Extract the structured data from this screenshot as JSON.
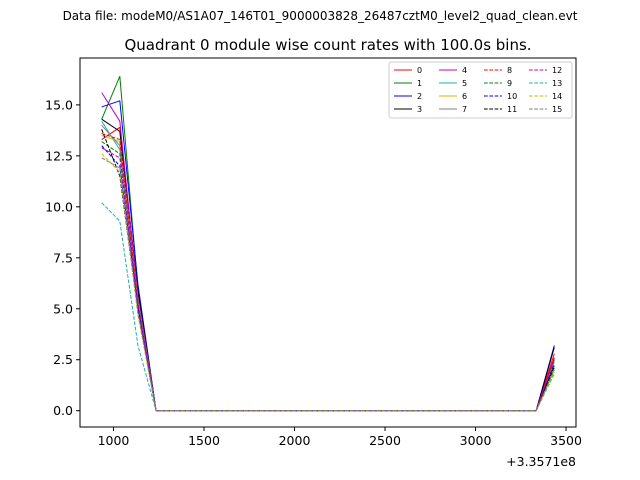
{
  "figure": {
    "supertitle": "Data file: modeM0/AS1A07_146T01_9000003828_26487cztM0_level2_quad_clean.evt",
    "title": "Quadrant 0 module wise count rates with 100.0s bins.",
    "x_offset_label": "+3.3571e8"
  },
  "chart_data": {
    "type": "line",
    "title": "Quadrant 0 module wise count rates with 100.0s bins.",
    "xlabel": "",
    "ylabel": "",
    "x_offset": 335710000,
    "xlim": [
      815,
      3555
    ],
    "ylim": [
      -0.8,
      17.3
    ],
    "xticks": [
      1000,
      1500,
      2000,
      2500,
      3000,
      3500
    ],
    "xtick_labels": [
      "1000",
      "1500",
      "2000",
      "2500",
      "3000",
      "3500"
    ],
    "yticks": [
      0.0,
      2.5,
      5.0,
      7.5,
      10.0,
      12.5,
      15.0
    ],
    "ytick_labels": [
      "0.0",
      "2.5",
      "5.0",
      "7.5",
      "10.0",
      "12.5",
      "15.0"
    ],
    "grid": false,
    "legend_position": "top-right",
    "legend_columns": 4,
    "x": [
      935,
      1035,
      1135,
      1235,
      1335,
      1435,
      1535,
      1635,
      1735,
      1835,
      1935,
      2035,
      2135,
      2235,
      2335,
      2435,
      2535,
      2635,
      2735,
      2835,
      2935,
      3035,
      3135,
      3235,
      3335,
      3435
    ],
    "series": [
      {
        "name": "0",
        "color": "#ff0000",
        "dash": "solid",
        "values": [
          13.3,
          13.9,
          5.7,
          0,
          0,
          0,
          0,
          0,
          0,
          0,
          0,
          0,
          0,
          0,
          0,
          0,
          0,
          0,
          0,
          0,
          0,
          0,
          0,
          0,
          0,
          2.8
        ]
      },
      {
        "name": "1",
        "color": "#008000",
        "dash": "solid",
        "values": [
          14.3,
          16.4,
          6.0,
          0,
          0,
          0,
          0,
          0,
          0,
          0,
          0,
          0,
          0,
          0,
          0,
          0,
          0,
          0,
          0,
          0,
          0,
          0,
          0,
          0,
          0,
          2.5
        ]
      },
      {
        "name": "2",
        "color": "#0000ff",
        "dash": "solid",
        "values": [
          14.9,
          15.2,
          6.2,
          0,
          0,
          0,
          0,
          0,
          0,
          0,
          0,
          0,
          0,
          0,
          0,
          0,
          0,
          0,
          0,
          0,
          0,
          0,
          0,
          0,
          0,
          3.2
        ]
      },
      {
        "name": "3",
        "color": "#000000",
        "dash": "solid",
        "values": [
          14.3,
          13.7,
          5.9,
          0,
          0,
          0,
          0,
          0,
          0,
          0,
          0,
          0,
          0,
          0,
          0,
          0,
          0,
          0,
          0,
          0,
          0,
          0,
          0,
          0,
          0,
          3.1
        ]
      },
      {
        "name": "4",
        "color": "#bf00bf",
        "dash": "solid",
        "values": [
          15.6,
          14.2,
          5.6,
          0,
          0,
          0,
          0,
          0,
          0,
          0,
          0,
          0,
          0,
          0,
          0,
          0,
          0,
          0,
          0,
          0,
          0,
          0,
          0,
          0,
          0,
          2.6
        ]
      },
      {
        "name": "5",
        "color": "#20b2aa",
        "dash": "solid",
        "values": [
          14.2,
          12.8,
          5.2,
          0,
          0,
          0,
          0,
          0,
          0,
          0,
          0,
          0,
          0,
          0,
          0,
          0,
          0,
          0,
          0,
          0,
          0,
          0,
          0,
          0,
          0,
          2.2
        ]
      },
      {
        "name": "6",
        "color": "#bfbf00",
        "dash": "solid",
        "values": [
          13.5,
          13.2,
          5.4,
          0,
          0,
          0,
          0,
          0,
          0,
          0,
          0,
          0,
          0,
          0,
          0,
          0,
          0,
          0,
          0,
          0,
          0,
          0,
          0,
          0,
          0,
          2.0
        ]
      },
      {
        "name": "7",
        "color": "#808080",
        "dash": "solid",
        "values": [
          14.0,
          13.0,
          5.5,
          0,
          0,
          0,
          0,
          0,
          0,
          0,
          0,
          0,
          0,
          0,
          0,
          0,
          0,
          0,
          0,
          0,
          0,
          0,
          0,
          0,
          0,
          2.4
        ]
      },
      {
        "name": "8",
        "color": "#ff0000",
        "dash": "dashed",
        "values": [
          13.6,
          13.3,
          5.3,
          0,
          0,
          0,
          0,
          0,
          0,
          0,
          0,
          0,
          0,
          0,
          0,
          0,
          0,
          0,
          0,
          0,
          0,
          0,
          0,
          0,
          0,
          2.6
        ]
      },
      {
        "name": "9",
        "color": "#008000",
        "dash": "dashed",
        "values": [
          13.2,
          12.6,
          5.0,
          0,
          0,
          0,
          0,
          0,
          0,
          0,
          0,
          0,
          0,
          0,
          0,
          0,
          0,
          0,
          0,
          0,
          0,
          0,
          0,
          0,
          0,
          2.1
        ]
      },
      {
        "name": "10",
        "color": "#0000ff",
        "dash": "dashed",
        "values": [
          13.0,
          12.0,
          5.1,
          0,
          0,
          0,
          0,
          0,
          0,
          0,
          0,
          0,
          0,
          0,
          0,
          0,
          0,
          0,
          0,
          0,
          0,
          0,
          0,
          0,
          0,
          2.3
        ]
      },
      {
        "name": "11",
        "color": "#000000",
        "dash": "dashed",
        "values": [
          13.8,
          11.5,
          4.9,
          0,
          0,
          0,
          0,
          0,
          0,
          0,
          0,
          0,
          0,
          0,
          0,
          0,
          0,
          0,
          0,
          0,
          0,
          0,
          0,
          0,
          0,
          2.2
        ]
      },
      {
        "name": "12",
        "color": "#bf00bf",
        "dash": "dashed",
        "values": [
          12.9,
          12.4,
          5.2,
          0,
          0,
          0,
          0,
          0,
          0,
          0,
          0,
          0,
          0,
          0,
          0,
          0,
          0,
          0,
          0,
          0,
          0,
          0,
          0,
          0,
          0,
          2.5
        ]
      },
      {
        "name": "13",
        "color": "#20b2aa",
        "dash": "dashed",
        "values": [
          10.2,
          9.3,
          3.2,
          0,
          0,
          0,
          0,
          0,
          0,
          0,
          0,
          0,
          0,
          0,
          0,
          0,
          0,
          0,
          0,
          0,
          0,
          0,
          0,
          0,
          0,
          1.8
        ]
      },
      {
        "name": "14",
        "color": "#bfbf00",
        "dash": "dashed",
        "values": [
          12.6,
          11.7,
          4.7,
          0,
          0,
          0,
          0,
          0,
          0,
          0,
          0,
          0,
          0,
          0,
          0,
          0,
          0,
          0,
          0,
          0,
          0,
          0,
          0,
          0,
          0,
          1.9
        ]
      },
      {
        "name": "15",
        "color": "#808080",
        "dash": "dashed",
        "values": [
          12.4,
          11.9,
          4.8,
          0,
          0,
          0,
          0,
          0,
          0,
          0,
          0,
          0,
          0,
          0,
          0,
          0,
          0,
          0,
          0,
          0,
          0,
          0,
          0,
          0,
          0,
          2.0
        ]
      }
    ]
  }
}
